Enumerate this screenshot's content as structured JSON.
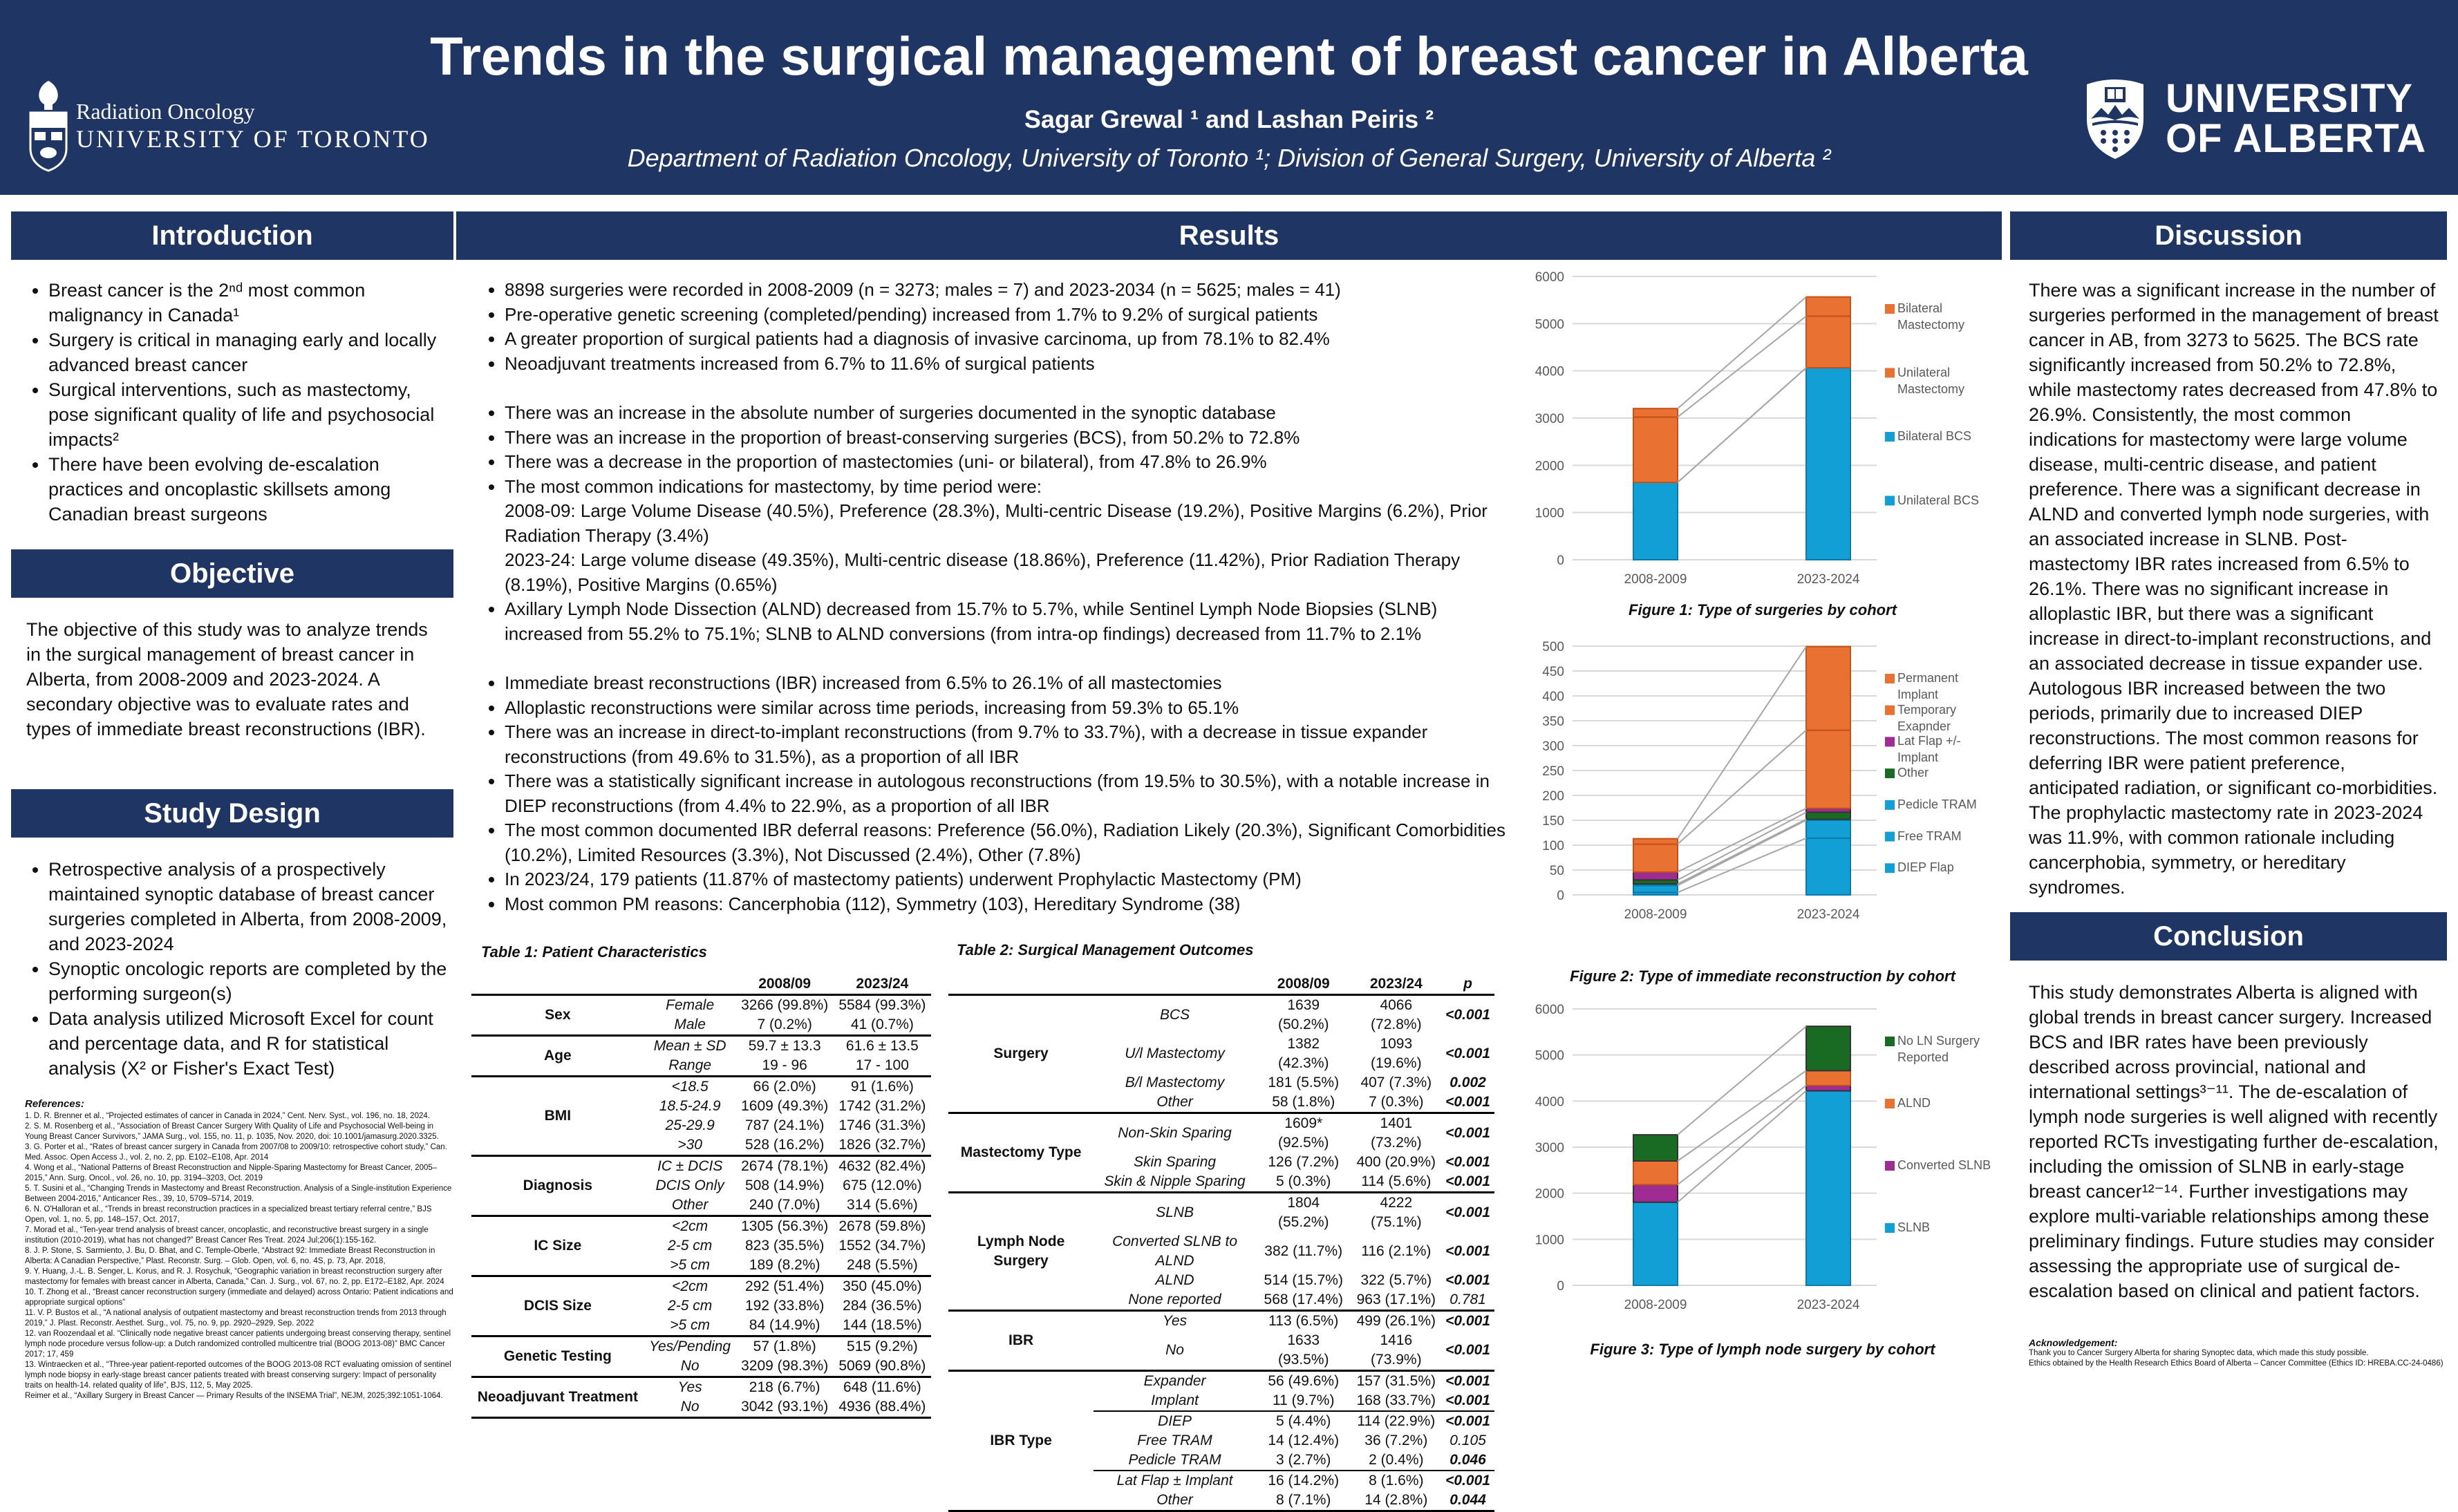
{
  "header": {
    "title": "Trends in the surgical management of breast cancer in Alberta",
    "authors": "Sagar Grewal ¹ and Lashan Peiris ²",
    "affiliations": "Department of Radiation Oncology, University of Toronto ¹; Division of General Surgery, University of Alberta ²",
    "logo_left_line1": "Radiation Oncology",
    "logo_left_line2": "UNIVERSITY OF TORONTO",
    "logo_right_line1": "UNIVERSITY",
    "logo_right_line2": "OF ALBERTA"
  },
  "colors": {
    "navy": "#1f3564",
    "blue": "#119fd6",
    "orange": "#e97132",
    "purple": "#a02b93",
    "green": "#196b24"
  },
  "introduction": {
    "heading": "Introduction",
    "bullets": [
      "Breast cancer is the 2ⁿᵈ most common malignancy in Canada¹",
      "Surgery is critical in managing early and locally advanced breast cancer",
      "Surgical interventions, such as mastectomy, pose significant quality of life and psychosocial impacts²",
      "There have been evolving de-escalation practices and oncoplastic skillsets among Canadian breast surgeons"
    ]
  },
  "objective": {
    "heading": "Objective",
    "text": "The objective of this study was to analyze trends in the surgical management of breast cancer in Alberta, from 2008-2009 and 2023-2024. A secondary objective was to evaluate rates and types of immediate breast reconstructions (IBR)."
  },
  "study_design": {
    "heading": "Study Design",
    "bullets": [
      "Retrospective analysis of a prospectively maintained synoptic database of breast cancer surgeries completed in Alberta, from 2008-2009, and 2023-2024",
      "Synoptic oncologic reports are completed by the performing surgeon(s)",
      "Data analysis utilized Microsoft Excel for count and percentage data, and R for statistical analysis (X² or Fisher's Exact Test)"
    ]
  },
  "references": {
    "heading": "References:",
    "items": [
      "1. D. R. Brenner et al., “Projected estimates of cancer in Canada in 2024,” Cent. Nerv. Syst., vol. 196, no. 18, 2024.",
      "2. S. M. Rosenberg et al., “Association of Breast Cancer Surgery With Quality of Life and Psychosocial Well-being in Young Breast Cancer Survivors,” JAMA Surg., vol. 155, no. 11, p. 1035, Nov. 2020, doi: 10.1001/jamasurg.2020.3325.",
      "3. G. Porter et al., “Rates of breast cancer surgery in Canada from 2007/08 to 2009/10: retrospective cohort study,” Can. Med. Assoc. Open Access J., vol. 2, no. 2, pp. E102–E108, Apr. 2014",
      "4. Wong et al., “National Patterns of Breast Reconstruction and Nipple-Sparing Mastectomy for Breast Cancer, 2005–2015,” Ann. Surg. Oncol., vol. 26, no. 10, pp. 3194–3203, Oct. 2019",
      "5. T. Susini et al., “Changing Trends in Mastectomy and Breast Reconstruction. Analysis of a Single-institution Experience Between 2004-2016,” Anticancer Res., 39, 10, 5709–5714, 2019.",
      "6. N. O'Halloran et al., “Trends in breast reconstruction practices in a specialized breast tertiary referral centre,” BJS Open, vol. 1, no. 5, pp. 148–157, Oct. 2017,",
      "7. Morad et al., “Ten-year trend analysis of breast cancer, oncoplastic, and reconstructive breast surgery in a single institution (2010-2019), what has not changed?” Breast Cancer Res Treat. 2024 Jul;206(1):155-162.",
      "8. J. P. Stone, S. Sarmiento, J. Bu, D. Bhat, and C. Temple-Oberle, “Abstract 92: Immediate Breast Reconstruction in Alberta: A Canadian Perspective,” Plast. Reconstr. Surg. – Glob. Open, vol. 6, no. 4S, p. 73, Apr. 2018,",
      "9. Y. Huang, J.-L. B. Senger, L. Korus, and R. J. Rosychuk, “Geographic variation in breast reconstruction surgery after mastectomy for females with breast cancer in Alberta, Canada,” Can. J. Surg., vol. 67, no. 2, pp. E172–E182, Apr. 2024",
      "10. T. Zhong et al., “Breast cancer reconstruction surgery (immediate and delayed) across Ontario: Patient indications and appropriate surgical options”",
      "11. V. P. Bustos et al., “A national analysis of outpatient mastectomy and breast reconstruction trends from 2013 through 2019,” J. Plast. Reconstr. Aesthet. Surg., vol. 75, no. 9, pp. 2920–2929, Sep. 2022",
      "12. van Roozendaal et al. “Clinically node negative breast cancer patients undergoing breast conserving therapy, sentinel lymph node procedure versus follow-up: a Dutch randomized controlled multicentre trial (BOOG 2013-08)” BMC Cancer 2017; 17, 459",
      "13. Wintraecken et al., “Three-year patient-reported outcomes of the BOOG 2013-08 RCT evaluating omission of sentinel lymph node biopsy in early-stage breast cancer patients treated with breast conserving surgery: Impact of personality traits on health-14. related quality of life”, BJS, 112, 5, May 2025.",
      "Reimer et al., “Axillary Surgery in Breast Cancer — Primary Results of the INSEMA Trial”, NEJM, 2025;392:1051-1064."
    ]
  },
  "results": {
    "heading": "Results",
    "bullets": [
      {
        "t": "8898 surgeries were recorded in 2008-2009 (n = 3273; males = 7) and 2023-2034 (n = 5625; males = 41)"
      },
      {
        "t": "Pre-operative genetic screening (completed/pending) increased from 1.7% to 9.2% of surgical patients"
      },
      {
        "t": "A greater proportion of surgical patients had a diagnosis of invasive carcinoma, up from 78.1% to 82.4%"
      },
      {
        "t": "Neoadjuvant treatments increased from 6.7% to 11.6% of surgical patients"
      },
      {
        "t": "",
        "k": "gap"
      },
      {
        "t": "There was an increase in the absolute number of surgeries documented in the synoptic database"
      },
      {
        "t": "There was an increase in the proportion of breast-conserving surgeries (BCS), from 50.2% to 72.8%"
      },
      {
        "t": "There was a decrease in the proportion of mastectomies (uni- or bilateral), from 47.8% to 26.9%"
      },
      {
        "t": "The most common indications for mastectomy, by time period were:"
      },
      {
        "t": "2008-09: Large Volume Disease (40.5%), Preference (28.3%), Multi-centric Disease (19.2%), Positive Margins (6.2%), Prior Radiation Therapy (3.4%)",
        "k": "cont"
      },
      {
        "t": "2023-24: Large volume disease (49.35%), Multi-centric disease (18.86%), Preference (11.42%), Prior Radiation Therapy (8.19%), Positive Margins (0.65%)",
        "k": "cont"
      },
      {
        "t": "Axillary Lymph Node Dissection (ALND) decreased from 15.7% to 5.7%, while Sentinel Lymph Node Biopsies (SLNB) increased from 55.2% to 75.1%; SLNB to ALND conversions (from intra-op findings) decreased from 11.7% to 2.1%"
      },
      {
        "t": "",
        "k": "gap"
      },
      {
        "t": "Immediate breast reconstructions (IBR) increased from 6.5% to 26.1% of all mastectomies"
      },
      {
        "t": "Alloplastic reconstructions were similar across time periods, increasing from 59.3% to 65.1%"
      },
      {
        "t": "There was an increase in direct-to-implant reconstructions (from 9.7% to 33.7%), with a decrease in tissue expander reconstructions (from 49.6% to 31.5%), as a proportion of all IBR"
      },
      {
        "t": "There was a statistically significant increase in autologous reconstructions (from 19.5% to 30.5%), with a notable increase in DIEP reconstructions (from 4.4% to 22.9%, as a proportion of all IBR"
      },
      {
        "t": "The most common documented IBR deferral reasons: Preference (56.0%), Radiation Likely (20.3%), Significant Comorbidities (10.2%), Limited Resources (3.3%), Not Discussed (2.4%), Other (7.8%)"
      },
      {
        "t": "In 2023/24, 179 patients (11.87% of mastectomy patients) underwent Prophylactic Mastectomy (PM)"
      },
      {
        "t": "Most common PM reasons: Cancerphobia (112), Symmetry (103), Hereditary Syndrome (38)"
      }
    ]
  },
  "table1": {
    "title": "Table 1: Patient Characteristics",
    "headers": [
      "",
      "",
      "2008/09",
      "2023/24"
    ],
    "groups": [
      {
        "name": "Sex",
        "rows": [
          [
            "Female",
            "3266 (99.8%)",
            "5584 (99.3%)"
          ],
          [
            "Male",
            "7 (0.2%)",
            "41 (0.7%)"
          ]
        ]
      },
      {
        "name": "Age",
        "rows": [
          [
            "Mean ± SD",
            "59.7 ± 13.3",
            "61.6 ± 13.5"
          ],
          [
            "Range",
            "19 - 96",
            "17 - 100"
          ]
        ]
      },
      {
        "name": "BMI",
        "rows": [
          [
            "<18.5",
            "66 (2.0%)",
            "91 (1.6%)"
          ],
          [
            "18.5-24.9",
            "1609 (49.3%)",
            "1742 (31.2%)"
          ],
          [
            "25-29.9",
            "787 (24.1%)",
            "1746 (31.3%)"
          ],
          [
            ">30",
            "528 (16.2%)",
            "1826 (32.7%)"
          ]
        ]
      },
      {
        "name": "Diagnosis",
        "rows": [
          [
            "IC ± DCIS",
            "2674 (78.1%)",
            "4632 (82.4%)"
          ],
          [
            "DCIS Only",
            "508 (14.9%)",
            "675 (12.0%)"
          ],
          [
            "Other",
            "240 (7.0%)",
            "314 (5.6%)"
          ]
        ]
      },
      {
        "name": "IC Size",
        "rows": [
          [
            "<2cm",
            "1305 (56.3%)",
            "2678 (59.8%)"
          ],
          [
            "2-5 cm",
            "823 (35.5%)",
            "1552 (34.7%)"
          ],
          [
            ">5 cm",
            "189 (8.2%)",
            "248 (5.5%)"
          ]
        ]
      },
      {
        "name": "DCIS Size",
        "rows": [
          [
            "<2cm",
            "292 (51.4%)",
            "350 (45.0%)"
          ],
          [
            "2-5 cm",
            "192 (33.8%)",
            "284 (36.5%)"
          ],
          [
            ">5 cm",
            "84 (14.9%)",
            "144 (18.5%)"
          ]
        ]
      },
      {
        "name": "Genetic Testing",
        "rows": [
          [
            "Yes/Pending",
            "57 (1.8%)",
            "515 (9.2%)"
          ],
          [
            "No",
            "3209 (98.3%)",
            "5069 (90.8%)"
          ]
        ]
      },
      {
        "name": "Neoadjuvant Treatment",
        "rows": [
          [
            "Yes",
            "218 (6.7%)",
            "648 (11.6%)"
          ],
          [
            "No",
            "3042 (93.1%)",
            "4936 (88.4%)"
          ]
        ]
      }
    ]
  },
  "table2": {
    "title": "Table 2: Surgical Management Outcomes",
    "headers": [
      "",
      "",
      "2008/09",
      "2023/24",
      "p"
    ],
    "groups": [
      {
        "name": "Surgery",
        "rows": [
          [
            "BCS",
            "1639 (50.2%)",
            "4066 (72.8%)",
            "<0.001"
          ],
          [
            "U/l Mastectomy",
            "1382 (42.3%)",
            "1093 (19.6%)",
            "<0.001"
          ],
          [
            "B/l Mastectomy",
            "181 (5.5%)",
            "407 (7.3%)",
            "0.002"
          ],
          [
            "Other",
            "58 (1.8%)",
            "7 (0.3%)",
            "<0.001"
          ]
        ]
      },
      {
        "name": "Mastectomy Type",
        "rows": [
          [
            "Non-Skin Sparing",
            "1609* (92.5%)",
            "1401 (73.2%)",
            "<0.001"
          ],
          [
            "Skin Sparing",
            "126 (7.2%)",
            "400 (20.9%)",
            "<0.001"
          ],
          [
            "Skin & Nipple Sparing",
            "5 (0.3%)",
            "114 (5.6%)",
            "<0.001"
          ]
        ]
      },
      {
        "name": "Lymph Node Surgery",
        "rows": [
          [
            "SLNB",
            "1804 (55.2%)",
            "4222 (75.1%)",
            "<0.001"
          ],
          [
            "Converted SLNB to ALND",
            "382 (11.7%)",
            "116 (2.1%)",
            "<0.001"
          ],
          [
            "ALND",
            "514 (15.7%)",
            "322 (5.7%)",
            "<0.001"
          ],
          [
            "None reported",
            "568 (17.4%)",
            "963 (17.1%)",
            "0.781"
          ]
        ]
      },
      {
        "name": "IBR",
        "rows": [
          [
            "Yes",
            "113 (6.5%)",
            "499 (26.1%)",
            "<0.001"
          ],
          [
            "No",
            "1633 (93.5%)",
            "1416 (73.9%)",
            "<0.001"
          ]
        ]
      },
      {
        "name": "IBR Type",
        "rows": [
          [
            "Expander",
            "56 (49.6%)",
            "157 (31.5%)",
            "<0.001"
          ],
          [
            "Implant",
            "11 (9.7%)",
            "168 (33.7%)",
            "<0.001"
          ],
          [
            "DIEP",
            "5 (4.4%)",
            "114 (22.9%)",
            "<0.001"
          ],
          [
            "Free TRAM",
            "14 (12.4%)",
            "36 (7.2%)",
            "0.105"
          ],
          [
            "Pedicle TRAM",
            "3 (2.7%)",
            "2 (0.4%)",
            "0.046"
          ],
          [
            "Lat Flap ± Implant",
            "16 (14.2%)",
            "8 (1.6%)",
            "<0.001"
          ],
          [
            "Other",
            "8 (7.1%)",
            "14 (2.8%)",
            "0.044"
          ]
        ]
      }
    ]
  },
  "chart_data": [
    {
      "type": "bar",
      "stacked": true,
      "title": "Figure 1: Type of surgeries by cohort",
      "categories": [
        "2008-2009",
        "2023-2024"
      ],
      "ylim": [
        0,
        6000
      ],
      "ytick_step": 1000,
      "grid": true,
      "legend": "right",
      "series": [
        {
          "name": "Unilateral BCS",
          "color": "#119fd6",
          "values": [
            1639,
            4066
          ]
        },
        {
          "name": "Bilateral BCS",
          "color": "#119fd6",
          "values": [
            0,
            0
          ]
        },
        {
          "name": "Unilateral Mastectomy",
          "color": "#e97132",
          "values": [
            1382,
            1093
          ]
        },
        {
          "name": "Bilateral Mastectomy",
          "color": "#e97132",
          "values": [
            181,
            407
          ]
        }
      ]
    },
    {
      "type": "bar",
      "stacked": true,
      "title": "Figure 2: Type of immediate reconstruction by cohort",
      "categories": [
        "2008-2009",
        "2023-2024"
      ],
      "ylim": [
        0,
        500
      ],
      "ytick_step": 50,
      "grid": true,
      "legend": "right",
      "series": [
        {
          "name": "DIEP Flap",
          "color": "#119fd6",
          "values": [
            5,
            114
          ]
        },
        {
          "name": "Free TRAM",
          "color": "#119fd6",
          "values": [
            14,
            36
          ]
        },
        {
          "name": "Pedicle TRAM",
          "color": "#119fd6",
          "values": [
            3,
            2
          ]
        },
        {
          "name": "Other",
          "color": "#196b24",
          "values": [
            8,
            14
          ]
        },
        {
          "name": "Lat Flap +/- Implant",
          "color": "#a02b93",
          "values": [
            16,
            8
          ]
        },
        {
          "name": "Temporary Exapnder",
          "color": "#e97132",
          "values": [
            56,
            157
          ]
        },
        {
          "name": "Permanent Implant",
          "color": "#e97132",
          "values": [
            11,
            168
          ]
        }
      ]
    },
    {
      "type": "bar",
      "stacked": true,
      "title": "Figure 3: Type of lymph node surgery by cohort",
      "categories": [
        "2008-2009",
        "2023-2024"
      ],
      "ylim": [
        0,
        6000
      ],
      "ytick_step": 1000,
      "grid": true,
      "legend": "right",
      "series": [
        {
          "name": "SLNB",
          "color": "#119fd6",
          "values": [
            1804,
            4222
          ]
        },
        {
          "name": "Converted SLNB",
          "color": "#a02b93",
          "values": [
            382,
            116
          ]
        },
        {
          "name": "ALND",
          "color": "#e97132",
          "values": [
            514,
            322
          ]
        },
        {
          "name": "No LN Surgery Reported",
          "color": "#196b24",
          "values": [
            568,
            963
          ]
        }
      ]
    }
  ],
  "discussion": {
    "heading": "Discussion",
    "text": "There was a significant increase in the number of surgeries performed in the management of breast cancer in AB, from 3273 to 5625. The BCS rate significantly increased from 50.2% to 72.8%, while mastectomy rates decreased from 47.8% to 26.9%. Consistently, the most common indications for mastectomy were large volume disease, multi-centric disease, and patient preference. There was a significant decrease in ALND and converted lymph node surgeries, with an associated increase in SLNB. Post-mastectomy IBR rates increased from 6.5% to 26.1%. There was no significant increase in alloplastic IBR, but there was a significant increase in direct-to-implant reconstructions, and an associated decrease in tissue expander use. Autologous IBR increased between the two periods, primarily due to increased DIEP reconstructions. The most common reasons for deferring IBR were patient preference, anticipated radiation, or significant co-morbidities. The prophylactic mastectomy rate in 2023-2024 was 11.9%, with common rationale including cancerphobia, symmetry, or hereditary syndromes."
  },
  "conclusion": {
    "heading": "Conclusion",
    "text": "This study demonstrates Alberta is aligned with global trends in breast cancer surgery. Increased BCS and IBR rates have been previously described across provincial, national and international settings³⁻¹¹. The de-escalation of lymph node surgeries is well aligned with recently reported RCTs investigating further de-escalation, including the omission of SLNB in early-stage breast cancer¹²⁻¹⁴. Further investigations may explore multi-variable relationships among these preliminary findings. Future studies may consider assessing the appropriate use of surgical de-escalation based on clinical and patient factors."
  },
  "acknowledgement": {
    "heading": "Acknowledgement:",
    "lines": [
      "Thank you to Cancer Surgery Alberta for sharing Synoptec data, which made this study possible.",
      "Ethics obtained by the Health Research Ethics Board of Alberta – Cancer Committee (Ethics ID: HREBA.CC-24-0486)"
    ]
  }
}
